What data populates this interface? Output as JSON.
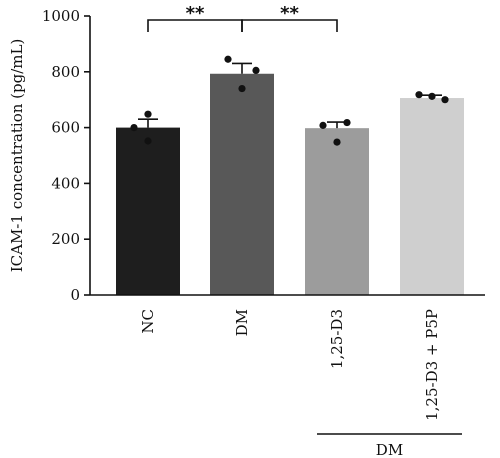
{
  "chart_data": {
    "type": "bar",
    "title": "",
    "xlabel": "",
    "ylabel": "ICAM-1 concentration (pg/mL)",
    "ylim": [
      0,
      1000
    ],
    "yticks": [
      "0",
      "200",
      "400",
      "600",
      "800",
      "1000"
    ],
    "categories": [
      "NC",
      "DM",
      "1,25-D3",
      "1,25-D3 + P5P"
    ],
    "values": [
      600,
      793,
      598,
      706
    ],
    "errors": [
      30,
      37,
      22,
      10
    ],
    "points": [
      [
        648,
        600,
        552
      ],
      [
        845,
        805,
        740
      ],
      [
        618,
        608,
        548
      ],
      [
        718,
        712,
        700
      ]
    ],
    "bar_colors": [
      "#1e1e1e",
      "#585858",
      "#9c9c9c",
      "#cfcfcf"
    ],
    "significance": [
      {
        "from": "NC",
        "to": "DM",
        "label": "**"
      },
      {
        "from": "DM",
        "to": "1,25-D3",
        "label": "**"
      }
    ],
    "group": {
      "label": "DM",
      "covers": [
        "1,25-D3",
        "1,25-D3 + P5P"
      ]
    }
  }
}
